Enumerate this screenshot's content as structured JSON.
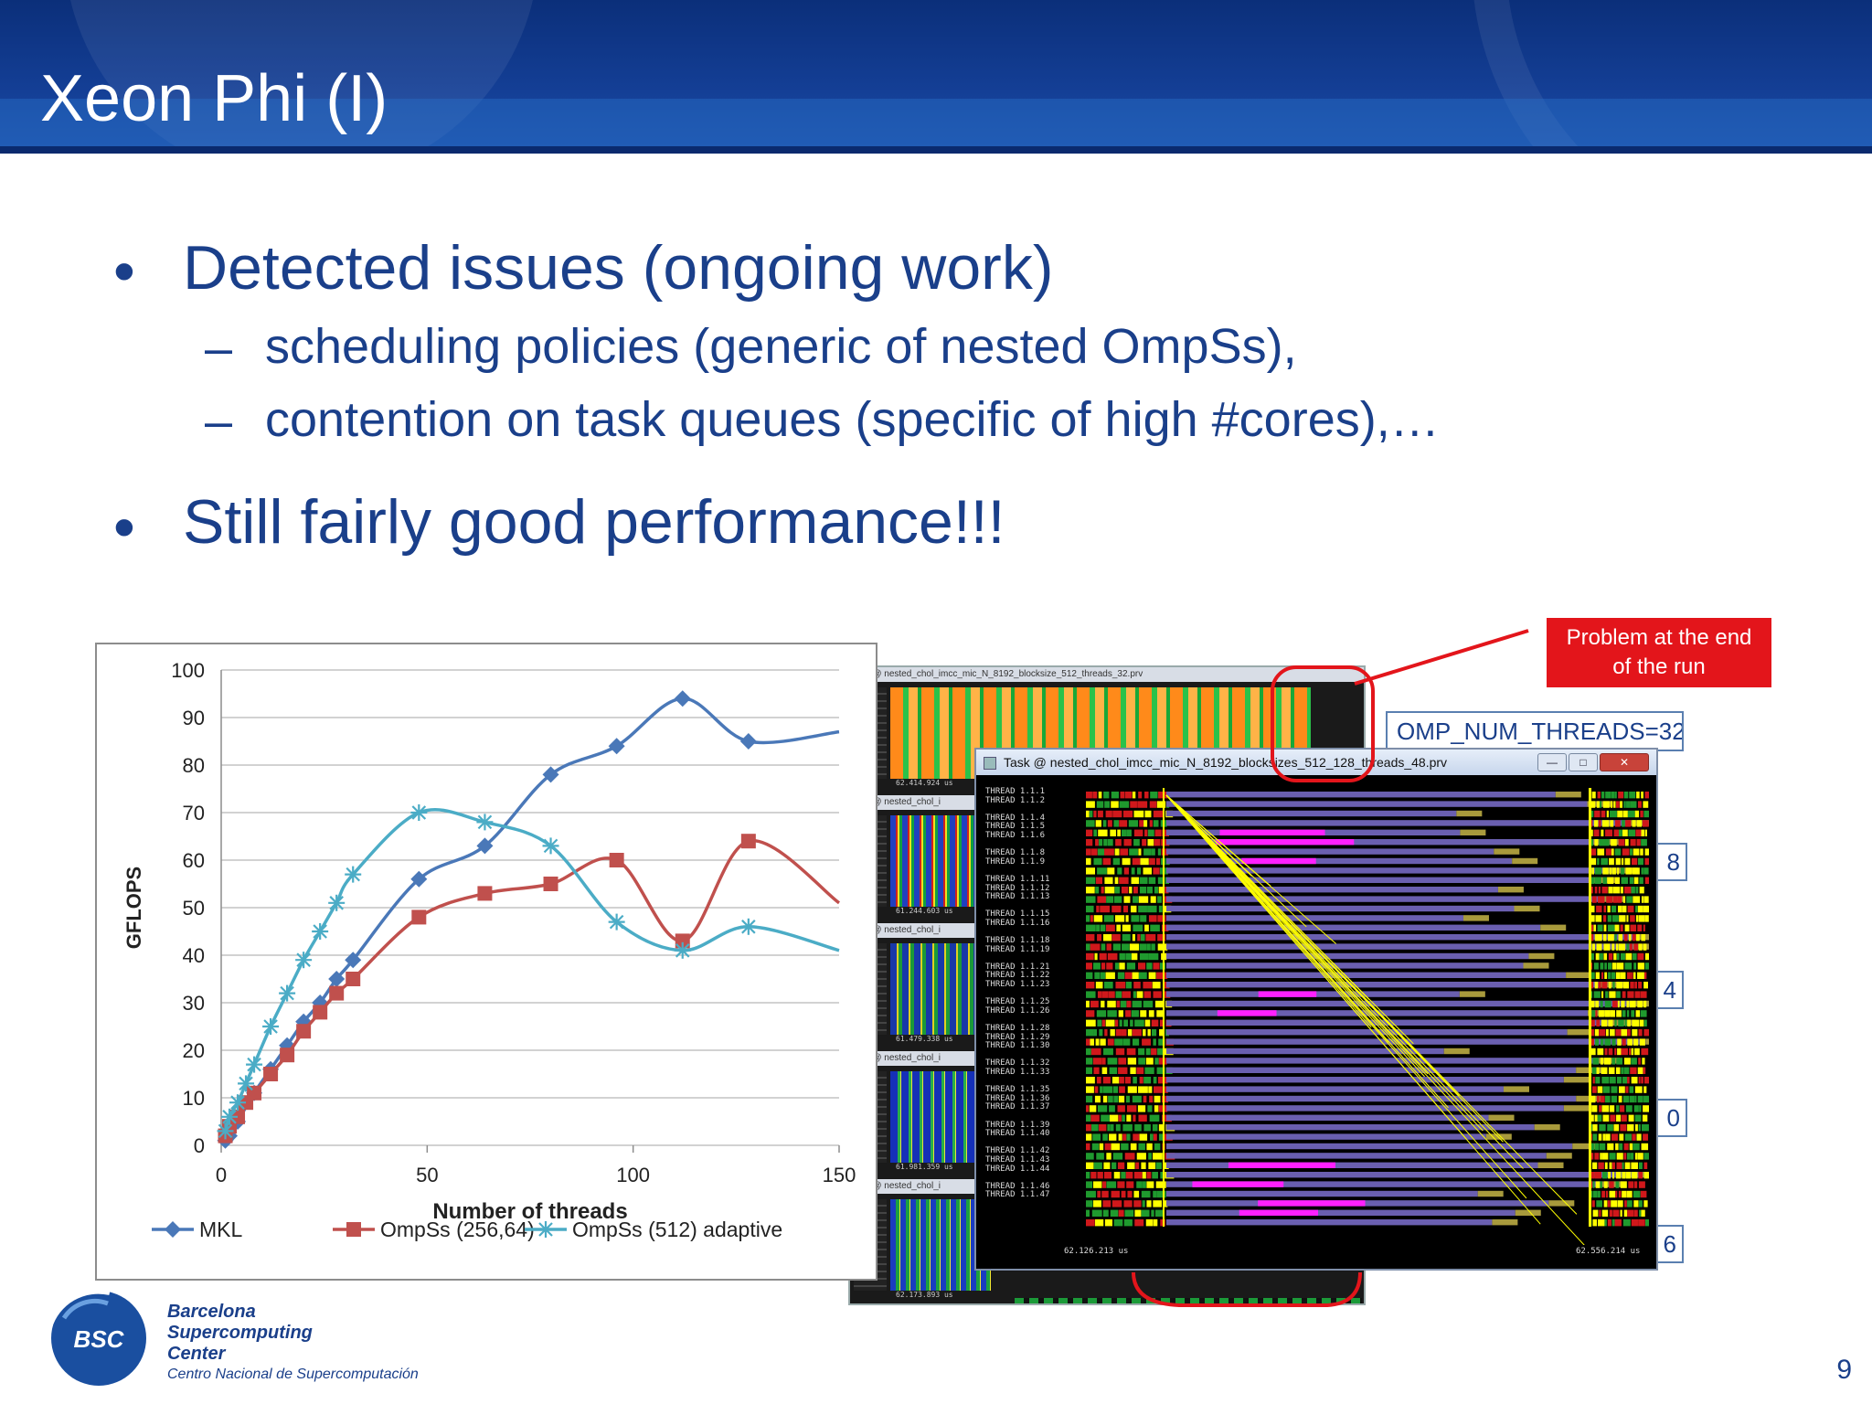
{
  "slide": {
    "title": "Xeon Phi (I)",
    "page_number": "9"
  },
  "bullets": [
    {
      "text": "Detected issues (ongoing work)",
      "marker": "•",
      "level": 1
    },
    {
      "text": "scheduling policies (generic of nested OmpSs),",
      "marker": "–",
      "level": 2
    },
    {
      "text": "contention on task queues (specific of high #cores),…",
      "marker": "–",
      "level": 2
    },
    {
      "text": "Still fairly good performance!!!",
      "marker": "•",
      "level": 1
    }
  ],
  "chart_data": {
    "type": "line",
    "title": "",
    "xlabel": "Number of threads",
    "ylabel": "GFLOPS",
    "xlim": [
      0,
      150
    ],
    "ylim": [
      0,
      100
    ],
    "xticks": [
      0,
      50,
      100,
      150
    ],
    "yticks": [
      0,
      10,
      20,
      30,
      40,
      50,
      60,
      70,
      80,
      90,
      100
    ],
    "grid": true,
    "legend": "bottom",
    "series": [
      {
        "name": "MKL",
        "color": "#4a78b8",
        "marker": "diamond",
        "x": [
          1,
          2,
          4,
          8,
          12,
          16,
          20,
          24,
          28,
          32,
          48,
          64,
          80,
          96,
          112,
          128,
          150
        ],
        "y": [
          1,
          2,
          5,
          11,
          16,
          21,
          26,
          30,
          35,
          39,
          56,
          63,
          78,
          84,
          94,
          85,
          87
        ]
      },
      {
        "name": "OmpSs (256,64)",
        "color": "#c0504d",
        "marker": "square",
        "x": [
          1,
          2,
          4,
          6,
          8,
          12,
          16,
          20,
          24,
          28,
          32,
          48,
          64,
          80,
          96,
          112,
          128,
          150
        ],
        "y": [
          2,
          4,
          6,
          9,
          11,
          15,
          19,
          24,
          28,
          32,
          35,
          48,
          53,
          55,
          60,
          43,
          64,
          51
        ]
      },
      {
        "name": "OmpSs (512) adaptive",
        "color": "#4bacc6",
        "marker": "star",
        "x": [
          1,
          2,
          4,
          6,
          8,
          12,
          16,
          20,
          24,
          28,
          32,
          48,
          64,
          80,
          96,
          112,
          128,
          150
        ],
        "y": [
          3,
          6,
          9,
          13,
          17,
          25,
          32,
          39,
          45,
          51,
          57,
          70,
          68,
          63,
          47,
          41,
          46,
          41
        ]
      }
    ]
  },
  "trace_windows": {
    "back_titles": [
      "ask @ nested_chol_imcc_mic_N_8192_blocksize_512_threads_32.prv",
      "ask @ nested_chol_i",
      "ask @ nested_chol_i",
      "ask @ nested_chol_i",
      "ask @ nested_chol_i"
    ],
    "back_timestamps": [
      "62.414.924 us",
      "61.244.603 us",
      "61.479.338 us",
      "61.981.359 us",
      "62.173.893 us"
    ],
    "front_title": "Task @ nested_chol_imcc_mic_N_8192_blocksizes_512_128_threads_48.prv",
    "front_buttons": {
      "min": "—",
      "max": "□",
      "close": "✕"
    },
    "time_start": "62.126.213 us",
    "time_end": "62.556.214 us",
    "thread_labels": [
      "THREAD 1.1.1",
      "THREAD 1.1.2",
      "",
      "THREAD 1.1.4",
      "THREAD 1.1.5",
      "THREAD 1.1.6",
      "",
      "THREAD 1.1.8",
      "THREAD 1.1.9",
      "",
      "THREAD 1.1.11",
      "THREAD 1.1.12",
      "THREAD 1.1.13",
      "",
      "THREAD 1.1.15",
      "THREAD 1.1.16",
      "",
      "THREAD 1.1.18",
      "THREAD 1.1.19",
      "",
      "THREAD 1.1.21",
      "THREAD 1.1.22",
      "THREAD 1.1.23",
      "",
      "THREAD 1.1.25",
      "THREAD 1.1.26",
      "",
      "THREAD 1.1.28",
      "THREAD 1.1.29",
      "THREAD 1.1.30",
      "",
      "THREAD 1.1.32",
      "THREAD 1.1.33",
      "",
      "THREAD 1.1.35",
      "THREAD 1.1.36",
      "THREAD 1.1.37",
      "",
      "THREAD 1.1.39",
      "THREAD 1.1.40",
      "",
      "THREAD 1.1.42",
      "THREAD 1.1.43",
      "THREAD 1.1.44",
      "",
      "THREAD 1.1.46",
      "THREAD 1.1.47"
    ],
    "colors": {
      "purple": "#6a5fb0",
      "yellow": "#ffff00",
      "green": "#1f9a2e",
      "red": "#d0181b",
      "magenta": "#ff20ff",
      "olive": "#a89a3c"
    }
  },
  "side_boxes": [
    {
      "text": "OMP_NUM_THREADS=32"
    },
    {
      "text": "8"
    },
    {
      "text": "4"
    },
    {
      "text": "0"
    },
    {
      "text": "6"
    }
  ],
  "callout": {
    "line1": "Problem at the end",
    "line2": "of the run",
    "color": "#e3151b"
  },
  "logo": {
    "mark": "BSC",
    "line1": "Barcelona",
    "line2": "Supercomputing",
    "line3": "Center",
    "subtitle": "Centro Nacional de Supercomputación"
  }
}
